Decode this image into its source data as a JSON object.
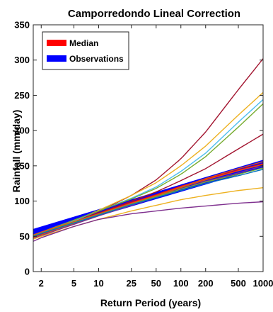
{
  "chart_data": {
    "type": "line",
    "title": "Camporredondo Lineal Correction",
    "xlabel": "Return Period (years)",
    "ylabel": "Rainfall (mm/day)",
    "x_scale": "log",
    "xlim": [
      1.6,
      1000
    ],
    "ylim": [
      0,
      350
    ],
    "x_ticks": [
      2,
      5,
      10,
      25,
      50,
      100,
      200,
      500,
      1000
    ],
    "x_tick_labels": [
      "2",
      "5",
      "10",
      "25",
      "50",
      "100",
      "200",
      "500",
      "1000"
    ],
    "y_ticks": [
      0,
      50,
      100,
      150,
      200,
      250,
      300,
      350
    ],
    "y_tick_labels": [
      "0",
      "50",
      "100",
      "150",
      "200",
      "250",
      "300",
      "350"
    ],
    "grid": false,
    "legend": {
      "placement": "top-left",
      "entries": [
        {
          "label": "Median",
          "color": "#ff0000"
        },
        {
          "label": "Observations",
          "color": "#0000ff"
        }
      ]
    },
    "band": {
      "name": "Observations",
      "color": "#0000ff",
      "x": [
        1.6,
        1000
      ],
      "lower": [
        52,
        148
      ],
      "upper": [
        60,
        158
      ]
    },
    "series": [
      {
        "color": "#a2142f",
        "x": [
          1.6,
          2,
          5,
          10,
          25,
          50,
          100,
          200,
          500,
          1000
        ],
        "y": [
          48,
          52,
          70,
          85,
          108,
          130,
          160,
          198,
          258,
          302
        ]
      },
      {
        "color": "#edb120",
        "x": [
          1.6,
          2,
          5,
          10,
          25,
          50,
          100,
          200,
          500,
          1000
        ],
        "y": [
          50,
          54,
          72,
          87,
          108,
          126,
          150,
          178,
          222,
          254
        ]
      },
      {
        "color": "#4dbeee",
        "x": [
          1.6,
          2,
          5,
          10,
          25,
          50,
          100,
          200,
          500,
          1000
        ],
        "y": [
          51,
          55,
          72,
          86,
          104,
          120,
          142,
          168,
          212,
          244
        ]
      },
      {
        "color": "#77ac30",
        "x": [
          1.6,
          2,
          5,
          10,
          25,
          50,
          100,
          200,
          500,
          1000
        ],
        "y": [
          52,
          56,
          73,
          86,
          103,
          118,
          138,
          163,
          205,
          238
        ]
      },
      {
        "color": "#a2142f",
        "x": [
          1.6,
          2,
          5,
          10,
          25,
          50,
          100,
          200,
          500,
          1000
        ],
        "y": [
          49,
          53,
          70,
          83,
          100,
          113,
          129,
          146,
          174,
          195
        ]
      },
      {
        "color": "#ff0000",
        "x": [
          1.6,
          2,
          5,
          10,
          25,
          50,
          100,
          200,
          500,
          1000
        ],
        "y": [
          50,
          54,
          70,
          82,
          98,
          109,
          121,
          131,
          144,
          153
        ]
      },
      {
        "color": "#d95319",
        "x": [
          1.6,
          2,
          5,
          10,
          25,
          50,
          100,
          200,
          500,
          1000
        ],
        "y": [
          48,
          52,
          68,
          80,
          96,
          107,
          119,
          130,
          143,
          152
        ]
      },
      {
        "color": "#7e2f8e",
        "x": [
          1.6,
          2,
          5,
          10,
          25,
          50,
          100,
          200,
          500,
          1000
        ],
        "y": [
          47,
          51,
          67,
          79,
          94,
          105,
          117,
          128,
          140,
          150
        ]
      },
      {
        "color": "#77ac30",
        "x": [
          1.6,
          2,
          5,
          10,
          25,
          50,
          100,
          200,
          500,
          1000
        ],
        "y": [
          51,
          55,
          70,
          81,
          96,
          106,
          117,
          127,
          138,
          147
        ]
      },
      {
        "color": "#0072bd",
        "x": [
          1.6,
          2,
          5,
          10,
          25,
          50,
          100,
          200,
          500,
          1000
        ],
        "y": [
          50,
          54,
          69,
          80,
          95,
          105,
          115,
          125,
          136,
          145
        ]
      },
      {
        "color": "#edb120",
        "x": [
          1.6,
          2,
          5,
          10,
          25,
          50,
          100,
          200,
          500,
          1000
        ],
        "y": [
          46,
          50,
          64,
          74,
          86,
          94,
          102,
          108,
          115,
          119
        ]
      },
      {
        "color": "#7e2f8e",
        "x": [
          1.6,
          2,
          5,
          10,
          25,
          50,
          100,
          200,
          500,
          1000
        ],
        "y": [
          43,
          48,
          64,
          74,
          82,
          86,
          90,
          93,
          97,
          99
        ]
      },
      {
        "color": "#d95319",
        "x": [
          1.6,
          2,
          5,
          10,
          25,
          50,
          100,
          200,
          500,
          1000
        ],
        "y": [
          52,
          56,
          71,
          82,
          97,
          108,
          120,
          132,
          146,
          156
        ]
      }
    ]
  }
}
